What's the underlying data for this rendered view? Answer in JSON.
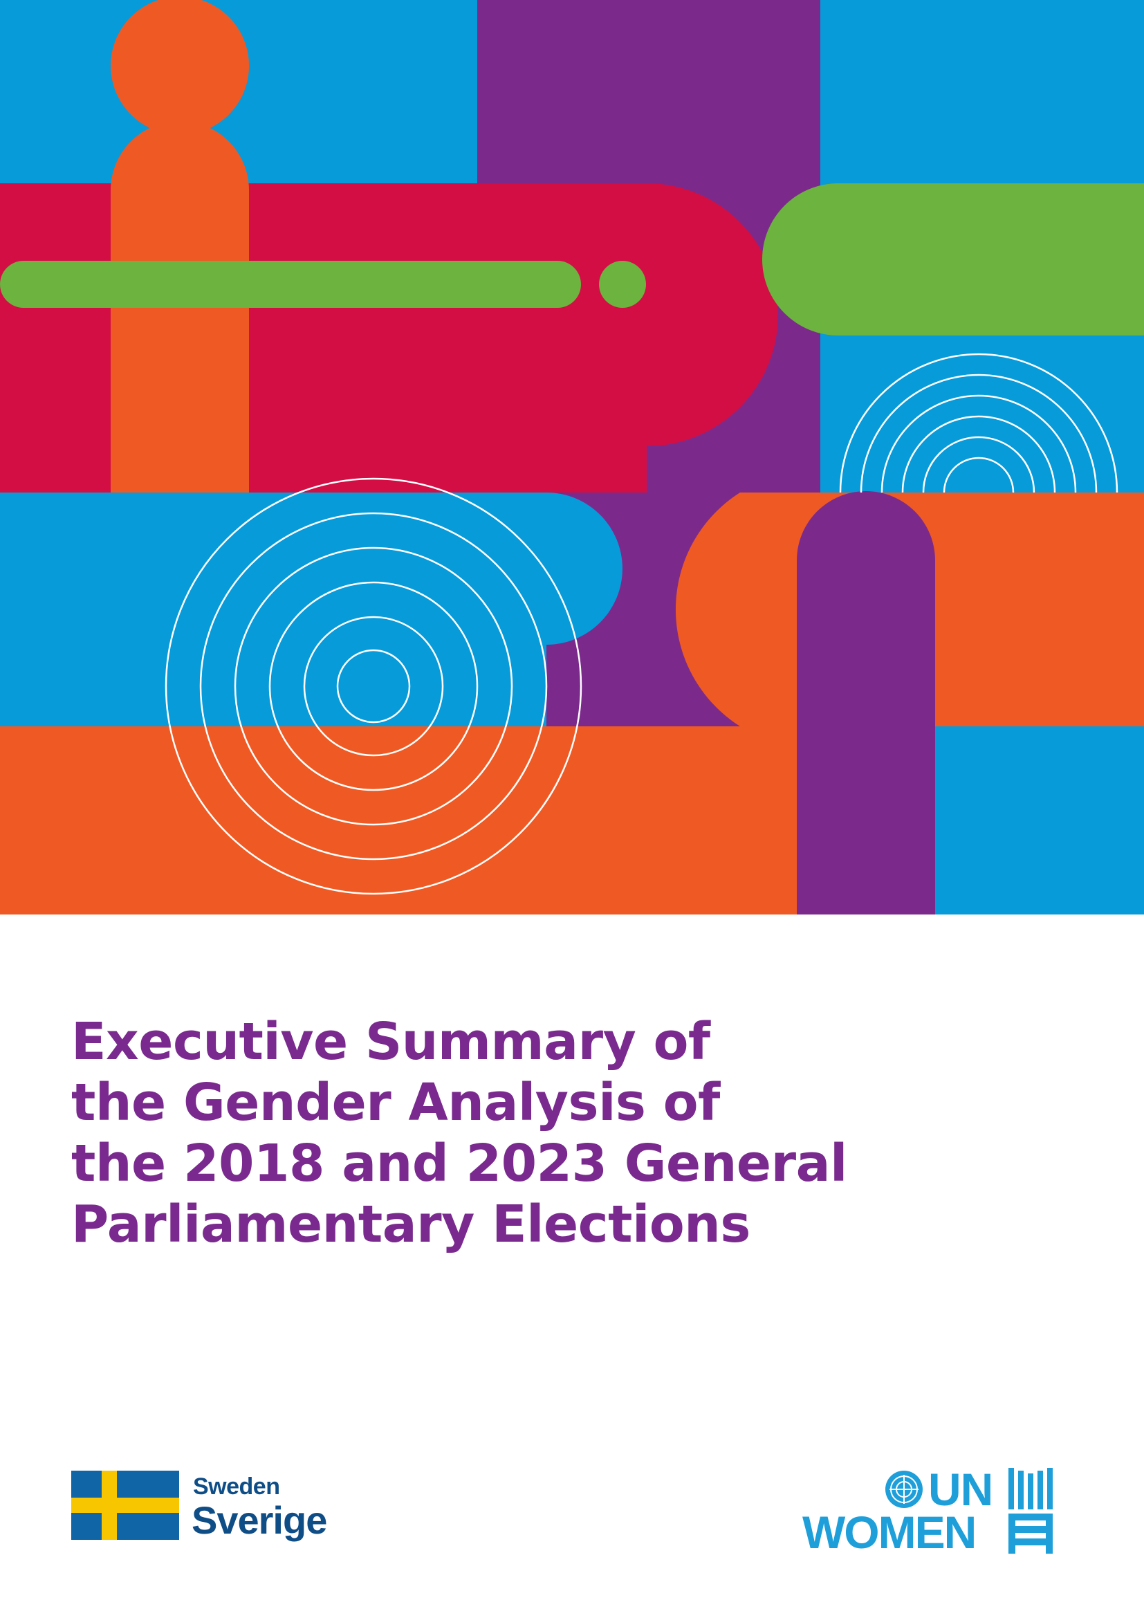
{
  "title": {
    "lines": [
      "Executive Summary of",
      "the Gender Analysis of",
      "the 2018 and 2023 General",
      "Parliamentary Elections"
    ]
  },
  "logos": {
    "sweden": {
      "name_en": "Sweden",
      "name_sv": "Sverige"
    },
    "un_women": {
      "line1": "UN",
      "line2": "WOMEN"
    }
  },
  "colors": {
    "title": "#7a2a8e",
    "blue": "#079bd9",
    "purple": "#7b2a8c",
    "red": "#d20e45",
    "orange": "#ef5a24",
    "green": "#6db33f",
    "sweden_blue": "#1065a6",
    "sweden_yellow": "#f7c600",
    "unwomen_blue": "#1e9fda"
  },
  "icons": [
    "cover-graphic",
    "sweden-flag-icon",
    "un-emblem-icon",
    "un-women-mark-icon"
  ]
}
